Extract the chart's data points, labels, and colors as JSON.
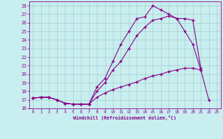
{
  "bg_color": "#c8eef0",
  "line_color": "#880088",
  "grid_color": "#aacccc",
  "xlabel": "Windchill (Refroidissement éolien,°C)",
  "xlim": [
    -0.5,
    23.5
  ],
  "ylim": [
    16,
    28.5
  ],
  "xticks": [
    0,
    1,
    2,
    3,
    4,
    5,
    6,
    7,
    8,
    9,
    10,
    11,
    12,
    13,
    14,
    15,
    16,
    17,
    18,
    19,
    20,
    21,
    22,
    23
  ],
  "yticks": [
    16,
    17,
    18,
    19,
    20,
    21,
    22,
    23,
    24,
    25,
    26,
    27,
    28
  ],
  "curve1_x": [
    0,
    1,
    2,
    3,
    4,
    5,
    6,
    7,
    8,
    9,
    10,
    11,
    12,
    13,
    14,
    15,
    16,
    17,
    18,
    19,
    20,
    21,
    22,
    23
  ],
  "curve1_y": [
    17.2,
    17.3,
    17.3,
    17.0,
    16.6,
    16.5,
    16.5,
    16.5,
    18.5,
    19.5,
    21.5,
    23.5,
    25.0,
    26.5,
    26.7,
    28.0,
    27.5,
    27.0,
    26.5,
    25.0,
    23.5,
    20.5,
    17.0,
    null
  ],
  "curve2_x": [
    0,
    1,
    2,
    3,
    4,
    5,
    6,
    7,
    8,
    9,
    10,
    11,
    12,
    13,
    14,
    15,
    16,
    17,
    18,
    19,
    20,
    21,
    22,
    23
  ],
  "curve2_y": [
    17.2,
    17.3,
    17.3,
    17.0,
    16.6,
    16.5,
    16.5,
    16.5,
    18.0,
    19.0,
    20.5,
    21.5,
    23.0,
    24.5,
    25.5,
    26.3,
    26.5,
    26.8,
    26.5,
    26.5,
    26.3,
    20.7,
    null,
    null
  ],
  "curve3_x": [
    0,
    1,
    2,
    3,
    4,
    5,
    6,
    7,
    8,
    9,
    10,
    11,
    12,
    13,
    14,
    15,
    16,
    17,
    18,
    19,
    20,
    21,
    22,
    23
  ],
  "curve3_y": [
    17.2,
    17.3,
    17.3,
    17.0,
    16.6,
    16.5,
    16.5,
    16.5,
    17.3,
    17.8,
    18.2,
    18.5,
    18.8,
    19.1,
    19.5,
    19.8,
    20.0,
    20.3,
    20.5,
    20.7,
    20.7,
    20.5,
    null,
    null
  ]
}
